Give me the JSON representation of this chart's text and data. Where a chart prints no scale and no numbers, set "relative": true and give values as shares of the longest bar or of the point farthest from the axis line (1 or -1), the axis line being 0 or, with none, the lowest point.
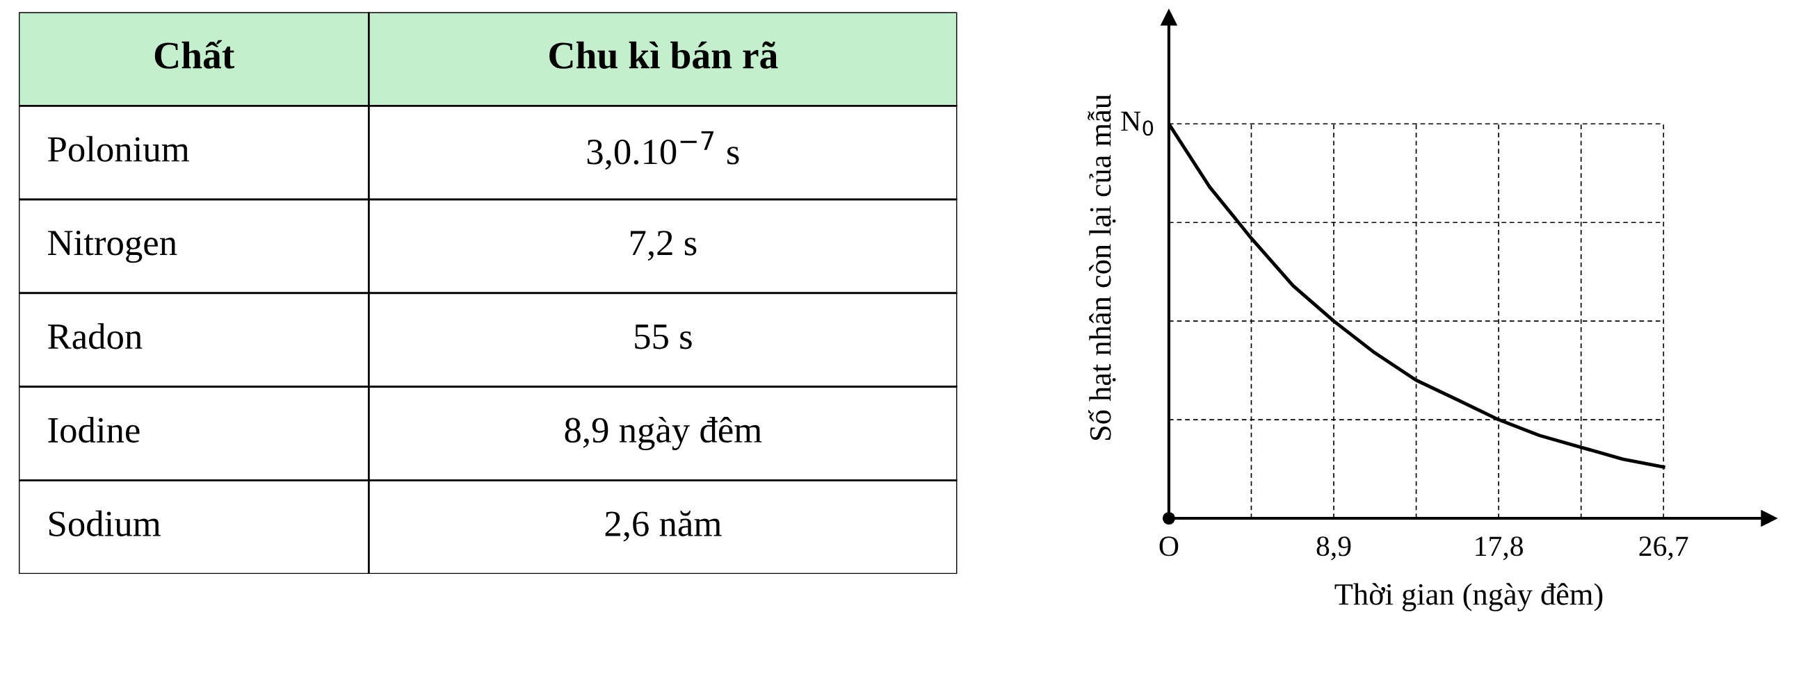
{
  "chart_data": [
    {
      "type": "other",
      "categories": [
        "Chất",
        "Chu kì bán rã"
      ],
      "color": "#c3efcc",
      "annotations": [
        "Polonium",
        "3,0.10$^{−7}$ s",
        "Nitrogen",
        "7,2 s",
        "Radon",
        "55 s",
        "Iodine",
        "8,9 ngày đêm",
        "Sodium",
        "2,6 năm"
      ]
    },
    {
      "type": "line",
      "relative": true,
      "xlabel": "Thời gian (ngày đêm)",
      "ylabel": "Số hạt nhân còn lại của mẫu",
      "x": [
        0,
        2.2,
        4.45,
        6.7,
        8.9,
        11.1,
        13.35,
        15.6,
        17.8,
        20,
        22.25,
        24.5,
        26.7
      ],
      "series": [
        {
          "color": "#000000",
          "values": [
            1,
            0.84,
            0.71,
            0.59,
            0.5,
            0.42,
            0.35,
            0.3,
            0.25,
            0.21,
            0.18,
            0.15,
            0.13
          ]
        }
      ],
      "xlim": [
        0,
        32.4
      ],
      "xticks": [
        {
          "value": 0,
          "label": "O"
        },
        {
          "value": 4.45,
          "label": null
        },
        {
          "value": 8.9,
          "label": "8,9"
        },
        {
          "value": 13.35,
          "label": null
        },
        {
          "value": 17.8,
          "label": "17,8"
        },
        {
          "value": 22.25,
          "label": null
        },
        {
          "value": 26.7,
          "label": "26,7"
        }
      ],
      "annotations": [
        {
          "text": "N$_{0}$",
          "x": 0,
          "y": 1
        }
      ],
      "grid": true,
      "line_style": "solid",
      "marker": "none"
    }
  ]
}
